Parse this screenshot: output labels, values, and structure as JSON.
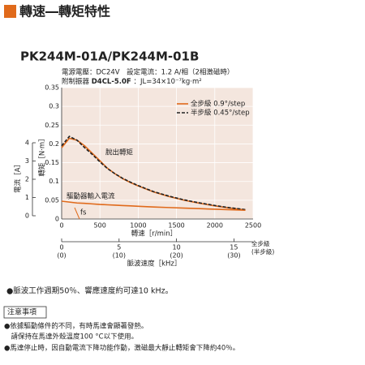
{
  "header": {
    "title": "轉速―轉矩特性",
    "model": "PK244M-01A/PK244M-01B"
  },
  "conditions": {
    "line1": "電源電壓：DC24V　設定電流：1.2 A/相（2相激磁時）",
    "damper_label": "附制振器",
    "damper_model": "D4CL-5.0F",
    "inertia": "：JL=34×10⁻⁷kg·m²"
  },
  "chart_data": {
    "type": "line",
    "xlabel": "轉速［r/min］",
    "ylabel": "轉矩［N·m］",
    "y2label": "電流［A］",
    "x": [
      0,
      100,
      200,
      300,
      400,
      500,
      600,
      700,
      800,
      900,
      1000,
      1200,
      1400,
      1600,
      1800,
      2000,
      2200,
      2400
    ],
    "series": [
      {
        "name": "全步級 0.9°/step",
        "color": "#e06a1b",
        "dash": false,
        "values": [
          0.19,
          0.215,
          0.21,
          0.195,
          0.175,
          0.155,
          0.135,
          0.12,
          0.107,
          0.097,
          0.088,
          0.072,
          0.06,
          0.05,
          0.042,
          0.035,
          0.029,
          0.024
        ]
      },
      {
        "name": "半步級 0.45°/step",
        "color": "#222222",
        "dash": true,
        "values": [
          0.195,
          0.22,
          0.21,
          0.19,
          0.172,
          0.152,
          0.134,
          0.12,
          0.108,
          0.098,
          0.089,
          0.073,
          0.061,
          0.051,
          0.043,
          0.036,
          0.03,
          0.025
        ]
      },
      {
        "color": "#e06a1b",
        "dash": false,
        "axis": "y2",
        "values": [
          0.8,
          0.75,
          0.7,
          0.68,
          0.65,
          0.62,
          0.6,
          0.58,
          0.56,
          0.54,
          0.52,
          0.48,
          0.45,
          0.42,
          0.39,
          0.36,
          0.33,
          0.3
        ]
      }
    ],
    "xlim": [
      0,
      2500
    ],
    "xticks": [
      0,
      500,
      1000,
      1500,
      2000,
      2500
    ],
    "ylim": [
      0,
      0.35
    ],
    "yticks": [
      0,
      0.05,
      0.1,
      0.15,
      0.2,
      0.25,
      0.3,
      0.35
    ],
    "y2lim": [
      0,
      7.2
    ],
    "y2ticks": [
      0,
      1,
      2,
      3,
      4
    ],
    "x2label": "脈波速度［kHz］",
    "x2lim": [
      0,
      16.6667
    ],
    "x2ticks": [
      0,
      5,
      10,
      15
    ],
    "x2ticks_half": [
      "(0)",
      "(10)",
      "(20)",
      "(30)"
    ],
    "x2_full_label": "全步級",
    "x2_half_label": "(半步級)",
    "grid": true,
    "annotations": [
      "脫出轉矩",
      "驅動器輸入電流",
      "fs"
    ]
  },
  "notes": {
    "spec": "●脈波工作週期50％、響應速度約可達10 kHz。",
    "caution_title": "注意事項",
    "items": [
      "●依據驅動條件的不同，有時馬達會顯著發熱。",
      "　請保持在馬達外殼溫度100 °C以下使用。",
      "●馬達停止時，因自動電流下降功能作動，激磁最大靜止轉矩會下降約40％。"
    ]
  }
}
